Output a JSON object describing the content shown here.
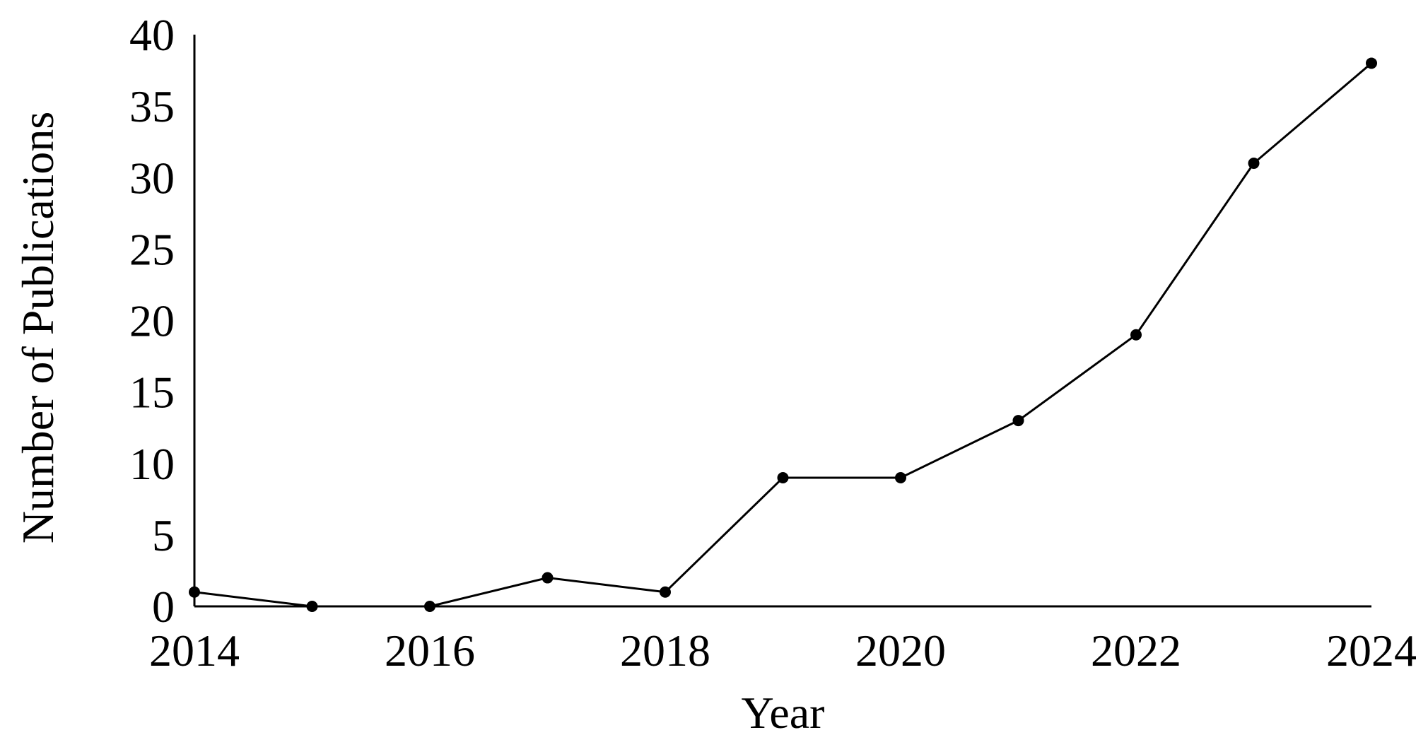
{
  "chart_data": {
    "type": "line",
    "title": "",
    "xlabel": "Year",
    "ylabel": "Number of Publications",
    "xlim": [
      2014,
      2024
    ],
    "ylim": [
      0,
      40
    ],
    "xticks": [
      "2014",
      "2016",
      "2018",
      "2020",
      "2022",
      "2024"
    ],
    "yticks": [
      "0",
      "5",
      "10",
      "15",
      "20",
      "25",
      "30",
      "35",
      "40"
    ],
    "grid": false,
    "legend": "none",
    "x": [
      2014,
      2015,
      2016,
      2017,
      2018,
      2019,
      2020,
      2021,
      2022,
      2023,
      2024
    ],
    "series": [
      {
        "values": [
          1,
          0,
          0,
          2,
          1,
          9,
          9,
          13,
          19,
          31,
          38
        ],
        "color": "#000000",
        "marker": "circle"
      }
    ]
  }
}
